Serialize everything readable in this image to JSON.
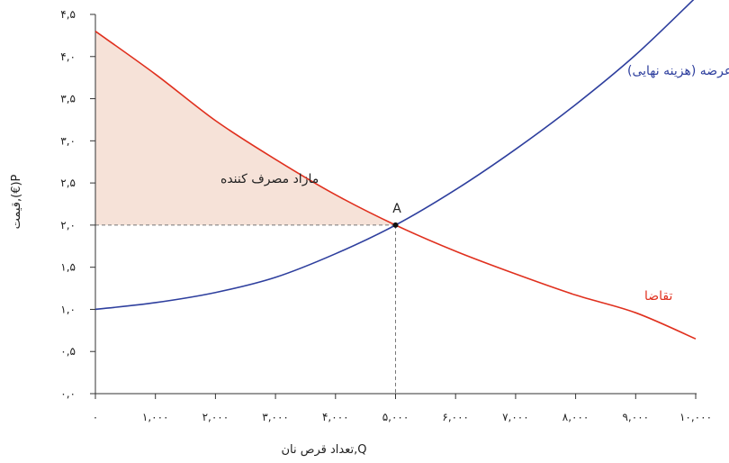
{
  "chart_data": {
    "type": "line",
    "xlabel": "Q,تعداد قرص نان",
    "ylabel": "P(€),قیمت",
    "xlim": [
      0,
      10000
    ],
    "ylim": [
      0,
      4.5
    ],
    "x_ticks": [
      0,
      1000,
      2000,
      3000,
      4000,
      5000,
      6000,
      7000,
      8000,
      9000,
      10000
    ],
    "x_tick_labels": [
      "۰",
      "۱,۰۰۰",
      "۲,۰۰۰",
      "۳,۰۰۰",
      "۴,۰۰۰",
      "۵,۰۰۰",
      "۶,۰۰۰",
      "۷,۰۰۰",
      "۸,۰۰۰",
      "۹,۰۰۰",
      "۱۰,۰۰۰"
    ],
    "y_ticks": [
      0,
      0.5,
      1.0,
      1.5,
      2.0,
      2.5,
      3.0,
      3.5,
      4.0,
      4.5
    ],
    "y_tick_labels": [
      "۰,۰",
      "۰,۵",
      "۱,۰",
      "۱,۵",
      "۲,۰",
      "۲,۵",
      "۳,۰",
      "۳,۵",
      "۴,۰",
      "۴,۵"
    ],
    "series": [
      {
        "name": "عرضه (هزینه نهایی)",
        "color": "#2e3f9e",
        "x": [
          0,
          1000,
          2000,
          3000,
          4000,
          5000,
          6000,
          7000,
          8000,
          9000,
          10000
        ],
        "y": [
          1.0,
          1.08,
          1.2,
          1.38,
          1.66,
          2.0,
          2.42,
          2.9,
          3.43,
          4.02,
          4.7
        ]
      },
      {
        "name": "تقاضا",
        "color": "#e0301e",
        "x": [
          0,
          1000,
          2000,
          3000,
          4000,
          5000,
          6000,
          7000,
          8000,
          9000,
          10000
        ],
        "y": [
          4.3,
          3.79,
          3.24,
          2.78,
          2.36,
          2.0,
          1.69,
          1.42,
          1.17,
          0.96,
          0.65
        ]
      }
    ],
    "equilibrium": {
      "label": "A",
      "x": 5000,
      "y": 2.0
    },
    "shaded_region": {
      "label": "مازاد مصرف کننده",
      "fill": "#f6e2d8"
    },
    "annotations": {
      "supply_label": "عرضه (هزینه نهایی)",
      "demand_label": "تقاضا",
      "surplus_label": "مازاد مصرف کننده",
      "point_label": "A"
    }
  }
}
